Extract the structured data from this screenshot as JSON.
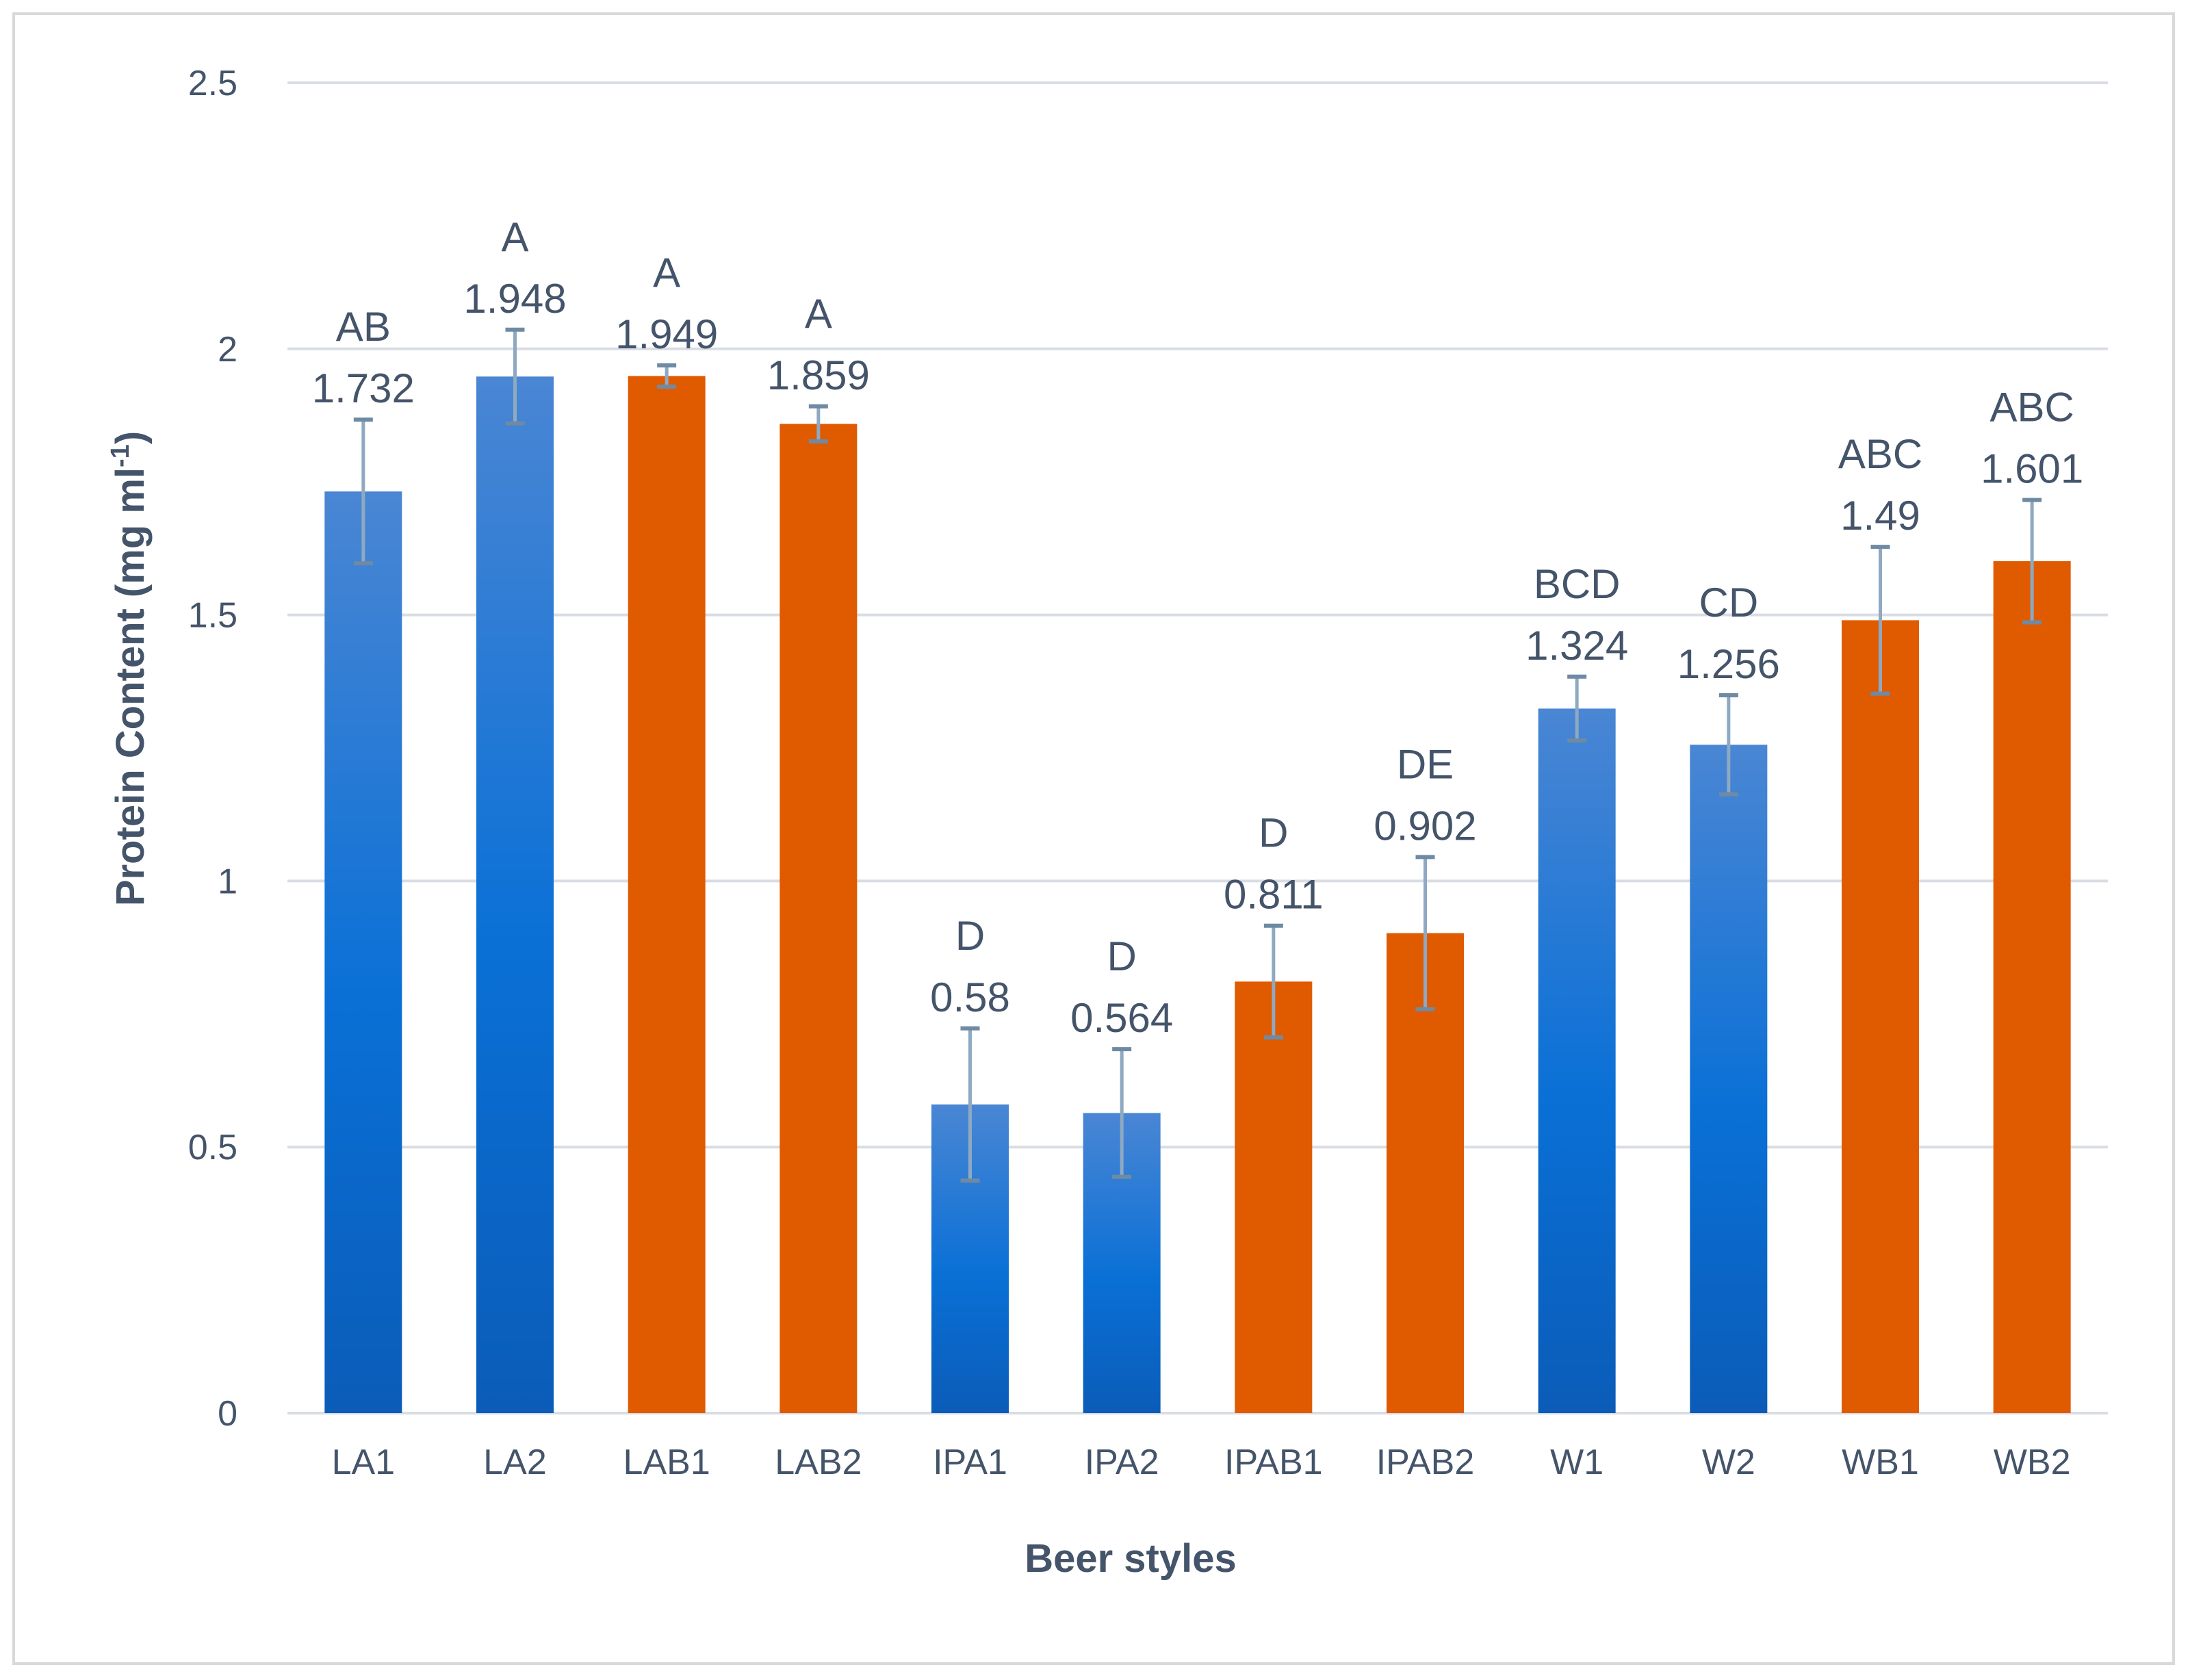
{
  "chart_data": {
    "type": "bar",
    "title": "",
    "xlabel": "Beer styles",
    "ylabel": "Protein Content (mg ml",
    "ylabel_sup": "-1",
    "ylabel_close": ")",
    "ylim": [
      0,
      2.5
    ],
    "yticks": [
      "0",
      "0.5",
      "1",
      "1.5",
      "2",
      "2.5"
    ],
    "ytick_values": [
      0,
      0.5,
      1,
      1.5,
      2,
      2.5
    ],
    "grid": true,
    "colors": {
      "blue_top": "#4a86d4",
      "blue_mid": "#0a70d6",
      "blue_bottom": "#0b5cb8",
      "orange": "#e05a00",
      "grid": "#d9dde3",
      "error": "#8ea9c1",
      "text": "#44546a"
    },
    "categories": [
      "LA1",
      "LA2",
      "LAB1",
      "LAB2",
      "IPA1",
      "IPA2",
      "IPAB1",
      "IPAB2",
      "W1",
      "W2",
      "WB1",
      "WB2"
    ],
    "values": [
      1.732,
      1.948,
      1.949,
      1.859,
      0.58,
      0.564,
      0.811,
      0.902,
      1.324,
      1.256,
      1.49,
      1.601
    ],
    "value_labels": [
      "1.732",
      "1.948",
      "1.949",
      "1.859",
      "0.58",
      "0.564",
      "0.811",
      "0.902",
      "1.324",
      "1.256",
      "1.49",
      "1.601"
    ],
    "groups": [
      "AB",
      "A",
      "A",
      "A",
      "D",
      "D",
      "D",
      "DE",
      "BCD",
      "CD",
      "ABC",
      "ABC"
    ],
    "bar_colors": [
      "blue",
      "blue",
      "orange",
      "orange",
      "blue",
      "blue",
      "orange",
      "orange",
      "blue",
      "blue",
      "orange",
      "orange"
    ],
    "errors": [
      0.135,
      0.088,
      0.02,
      0.033,
      0.143,
      0.12,
      0.105,
      0.143,
      0.06,
      0.093,
      0.138,
      0.115
    ]
  }
}
